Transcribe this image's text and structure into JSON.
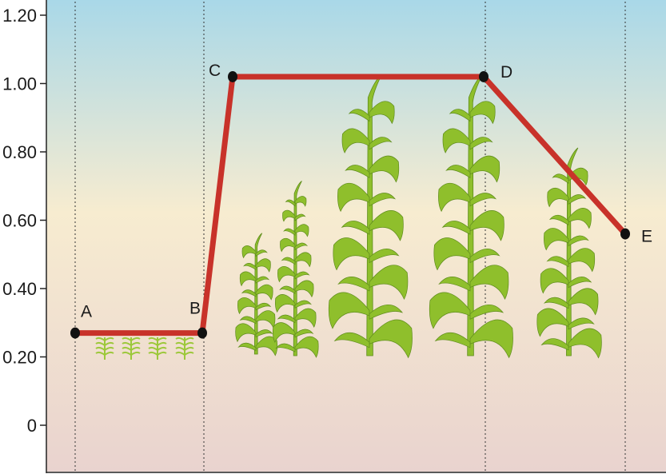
{
  "chart_data": {
    "type": "line",
    "title": "",
    "xlabel": "",
    "ylabel": "",
    "ylim": [
      -0.13,
      1.23
    ],
    "y_ticks": [
      {
        "value": 1.2,
        "label": "1.20"
      },
      {
        "value": 1.0,
        "label": "1.00"
      },
      {
        "value": 0.8,
        "label": "0.80"
      },
      {
        "value": 0.6,
        "label": "0.60"
      },
      {
        "value": 0.4,
        "label": "0.40"
      },
      {
        "value": 0.2,
        "label": "0.20"
      },
      {
        "value": 0,
        "label": "0"
      }
    ],
    "points": [
      {
        "label": "A",
        "y": 0.27
      },
      {
        "label": "B",
        "y": 0.27
      },
      {
        "label": "C",
        "y": 1.02
      },
      {
        "label": "D",
        "y": 1.02
      },
      {
        "label": "E",
        "y": 0.56
      }
    ],
    "line_color": "#c8322a",
    "grid": false,
    "background_gradient": [
      "#a9d8e8",
      "#f7ecd0",
      "#e9d3cf"
    ],
    "plant_color": "#8fbf2c"
  }
}
